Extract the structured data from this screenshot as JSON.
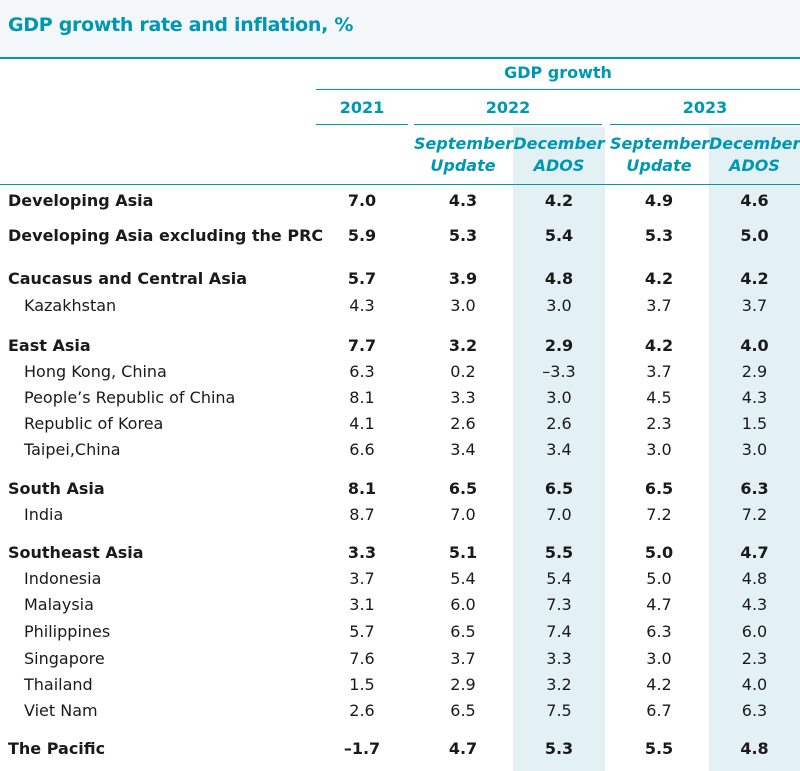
{
  "title": "GDP growth rate and inflation, %",
  "header": {
    "group": "GDP growth",
    "years": [
      "2021",
      "2022",
      "2023"
    ],
    "sub_top": [
      "September",
      "December",
      "September",
      "December"
    ],
    "sub_bottom": [
      "Update",
      "ADOS",
      "Update",
      "ADOS"
    ]
  },
  "rows": [
    {
      "name": "Developing Asia",
      "values": [
        "7.0",
        "4.3",
        "4.2",
        "4.9",
        "4.6"
      ]
    },
    {
      "name": "Developing Asia excluding the PRC",
      "values": [
        "5.9",
        "5.3",
        "5.4",
        "5.3",
        "5.0"
      ]
    },
    {
      "name": "Caucasus and Central Asia",
      "values": [
        "5.7",
        "3.9",
        "4.8",
        "4.2",
        "4.2"
      ]
    },
    {
      "name": "Kazakhstan",
      "values": [
        "4.3",
        "3.0",
        "3.0",
        "3.7",
        "3.7"
      ]
    },
    {
      "name": "East Asia",
      "values": [
        "7.7",
        "3.2",
        "2.9",
        "4.2",
        "4.0"
      ]
    },
    {
      "name": "Hong Kong, China",
      "values": [
        "6.3",
        "0.2",
        "–3.3",
        "3.7",
        "2.9"
      ]
    },
    {
      "name": "People’s Republic of China",
      "values": [
        "8.1",
        "3.3",
        "3.0",
        "4.5",
        "4.3"
      ]
    },
    {
      "name": "Republic of Korea",
      "values": [
        "4.1",
        "2.6",
        "2.6",
        "2.3",
        "1.5"
      ]
    },
    {
      "name": "Taipei,China",
      "values": [
        "6.6",
        "3.4",
        "3.4",
        "3.0",
        "3.0"
      ]
    },
    {
      "name": "South Asia",
      "values": [
        "8.1",
        "6.5",
        "6.5",
        "6.5",
        "6.3"
      ]
    },
    {
      "name": "India",
      "values": [
        "8.7",
        "7.0",
        "7.0",
        "7.2",
        "7.2"
      ]
    },
    {
      "name": "Southeast Asia",
      "values": [
        "3.3",
        "5.1",
        "5.5",
        "5.0",
        "4.7"
      ]
    },
    {
      "name": "Indonesia",
      "values": [
        "3.7",
        "5.4",
        "5.4",
        "5.0",
        "4.8"
      ]
    },
    {
      "name": "Malaysia",
      "values": [
        "3.1",
        "6.0",
        "7.3",
        "4.7",
        "4.3"
      ]
    },
    {
      "name": "Philippines",
      "values": [
        "5.7",
        "6.5",
        "7.4",
        "6.3",
        "6.0"
      ]
    },
    {
      "name": "Singapore",
      "values": [
        "7.6",
        "3.7",
        "3.3",
        "3.0",
        "2.3"
      ]
    },
    {
      "name": "Thailand",
      "values": [
        "1.5",
        "2.9",
        "3.2",
        "4.2",
        "4.0"
      ]
    },
    {
      "name": "Viet Nam",
      "values": [
        "2.6",
        "6.5",
        "7.5",
        "6.7",
        "6.3"
      ]
    },
    {
      "name": "The Pacific",
      "values": [
        "–1.7",
        "4.7",
        "5.3",
        "5.5",
        "4.8"
      ]
    }
  ]
}
